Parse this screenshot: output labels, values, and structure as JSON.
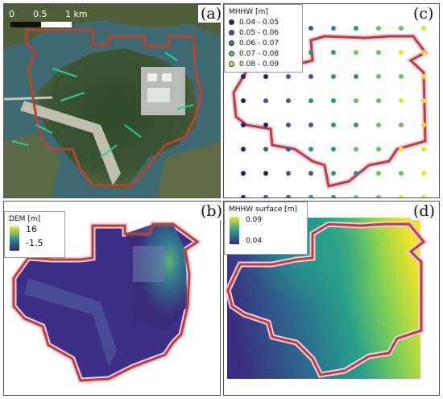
{
  "panels": {
    "a": {
      "label": "(a)",
      "scale": {
        "t0": "0",
        "t1": "0.5",
        "t2": "1 km"
      }
    },
    "b": {
      "label": "(b)",
      "legend": {
        "title": "DEM [m]",
        "max": "16",
        "min": "-1.5"
      }
    },
    "c": {
      "label": "(c)",
      "legend": {
        "title": "MHHW [m]",
        "items": [
          {
            "range": "0.04 - 0.05",
            "color": "#2b1d6e"
          },
          {
            "range": "0.05 - 0.06",
            "color": "#3d5a9a"
          },
          {
            "range": "0.06 - 0.07",
            "color": "#2e8f8b"
          },
          {
            "range": "0.07 - 0.08",
            "color": "#6cc163"
          },
          {
            "range": "0.08 - 0.09",
            "color": "#e6e32a"
          }
        ]
      }
    },
    "d": {
      "label": "(d)",
      "legend": {
        "title": "MHHW surface [m]",
        "max": "0.09",
        "min": "0.04"
      }
    }
  },
  "colors": {
    "boundary": "#b5452e",
    "halo": "#f6c8ee"
  }
}
